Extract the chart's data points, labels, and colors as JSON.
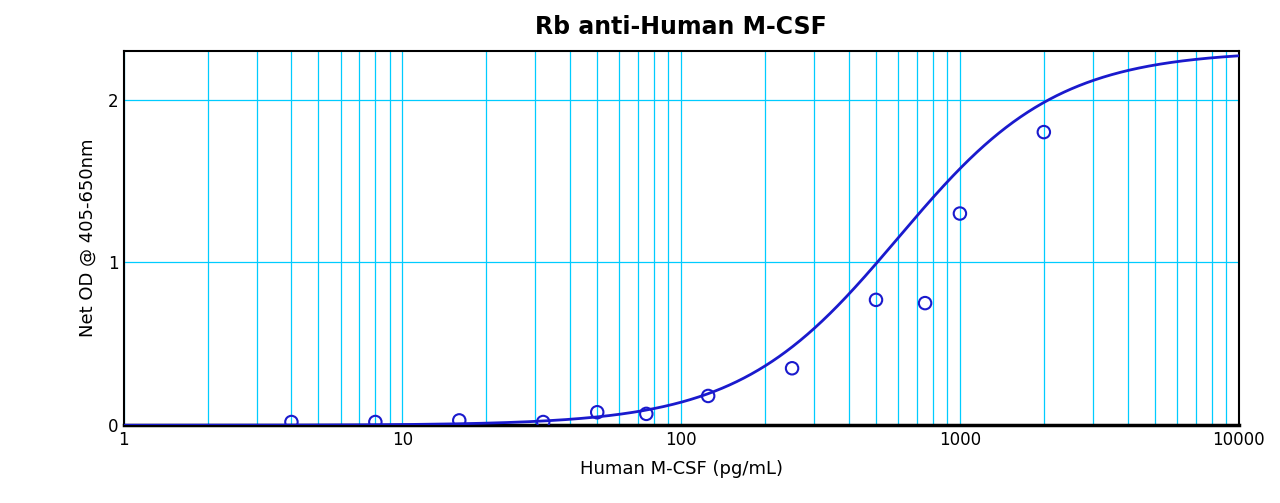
{
  "title": "Rb anti-Human M-CSF",
  "xlabel": "Human M-CSF (pg/mL)",
  "ylabel": "Net OD @ 405-650nm",
  "data_points_x": [
    4,
    8,
    16,
    32,
    50,
    75,
    125,
    250,
    500,
    750,
    1000,
    2000
  ],
  "data_points_y": [
    0.02,
    0.02,
    0.03,
    0.02,
    0.08,
    0.07,
    0.18,
    0.35,
    0.77,
    0.75,
    1.3,
    1.8
  ],
  "xmin": 1,
  "xmax": 10000,
  "ymin": 0,
  "ymax": 2.3,
  "curve_color": "#1a1acd",
  "point_color": "#1a1acd",
  "grid_color": "#00CCFF",
  "bg_color": "#FFFFFF",
  "plot_bg_color": "#FFFFFF",
  "title_fontsize": 17,
  "label_fontsize": 13,
  "tick_fontsize": 12,
  "yticks": [
    0,
    1,
    2
  ],
  "sigmoid_L": 2.3,
  "sigmoid_k": 3.5,
  "sigmoid_x0": 600
}
